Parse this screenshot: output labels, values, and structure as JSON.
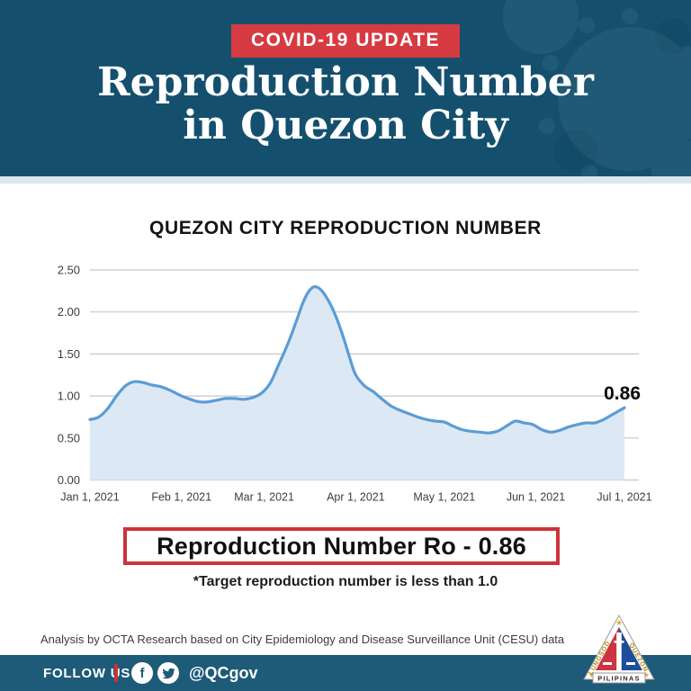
{
  "header": {
    "badge": "COVID-19 UPDATE",
    "title_line1": "Reproduction Number",
    "title_line2": "in Quezon City",
    "bg_color": "#14506e",
    "badge_color": "#d63b41"
  },
  "chart_data": {
    "type": "area",
    "title": "QUEZON CITY REPRODUCTION NUMBER",
    "xlabel": "",
    "ylabel": "",
    "ylim": [
      0,
      2.5
    ],
    "xlim_days": [
      0,
      181
    ],
    "grid": true,
    "x_days": [
      0,
      3,
      6,
      9,
      12,
      15,
      18,
      21,
      24,
      27,
      31,
      34,
      37,
      40,
      43,
      46,
      49,
      52,
      55,
      58,
      61,
      64,
      67,
      70,
      72,
      74,
      76,
      78,
      80,
      82,
      84,
      86,
      88,
      90,
      93,
      96,
      99,
      102,
      105,
      108,
      111,
      114,
      117,
      120,
      123,
      126,
      129,
      132,
      135,
      138,
      141,
      144,
      147,
      150,
      153,
      156,
      159,
      162,
      165,
      168,
      171,
      174,
      177,
      181
    ],
    "values": [
      0.72,
      0.75,
      0.85,
      1.0,
      1.12,
      1.17,
      1.16,
      1.13,
      1.11,
      1.07,
      1.0,
      0.96,
      0.93,
      0.93,
      0.95,
      0.97,
      0.97,
      0.96,
      0.98,
      1.03,
      1.15,
      1.38,
      1.62,
      1.9,
      2.1,
      2.24,
      2.3,
      2.27,
      2.18,
      2.05,
      1.88,
      1.68,
      1.45,
      1.25,
      1.12,
      1.05,
      0.96,
      0.88,
      0.83,
      0.79,
      0.75,
      0.72,
      0.7,
      0.69,
      0.64,
      0.6,
      0.58,
      0.57,
      0.56,
      0.58,
      0.64,
      0.7,
      0.68,
      0.66,
      0.6,
      0.57,
      0.59,
      0.63,
      0.66,
      0.68,
      0.68,
      0.72,
      0.78,
      0.86
    ],
    "x_ticks": [
      {
        "day": 0,
        "label": "Jan 1, 2021"
      },
      {
        "day": 31,
        "label": "Feb 1, 2021"
      },
      {
        "day": 59,
        "label": "Mar 1, 2021"
      },
      {
        "day": 90,
        "label": "Apr 1, 2021"
      },
      {
        "day": 120,
        "label": "May 1, 2021"
      },
      {
        "day": 151,
        "label": "Jun 1, 2021"
      },
      {
        "day": 181,
        "label": "Jul 1, 2021"
      }
    ],
    "y_ticks": [
      0,
      0.5,
      1.0,
      1.5,
      2.0,
      2.5
    ],
    "end_label": "0.86",
    "line_color": "#5b9cd5",
    "fill_color": "#dce9f5",
    "grid_color": "#c7c7c7",
    "tick_color": "#3d3d3d",
    "end_label_color": "#0a0a0a"
  },
  "summary": {
    "box_text": "Reproduction Number Ro - 0.86",
    "note": "*Target reproduction number is less than 1.0",
    "box_border_color": "#cb333b"
  },
  "credits": {
    "analysis": "Analysis by OCTA Research based on City Epidemiology and Disease Surveillance Unit (CESU) data"
  },
  "footer": {
    "follow_label": "FOLLOW US",
    "handle": "@QCgov",
    "facebook_glyph": "f",
    "bar_color": "#1d5b78",
    "seal": {
      "left_text": "LUNGSOD",
      "right_text": "QUEZON",
      "banner_text": "PILIPINAS"
    }
  }
}
